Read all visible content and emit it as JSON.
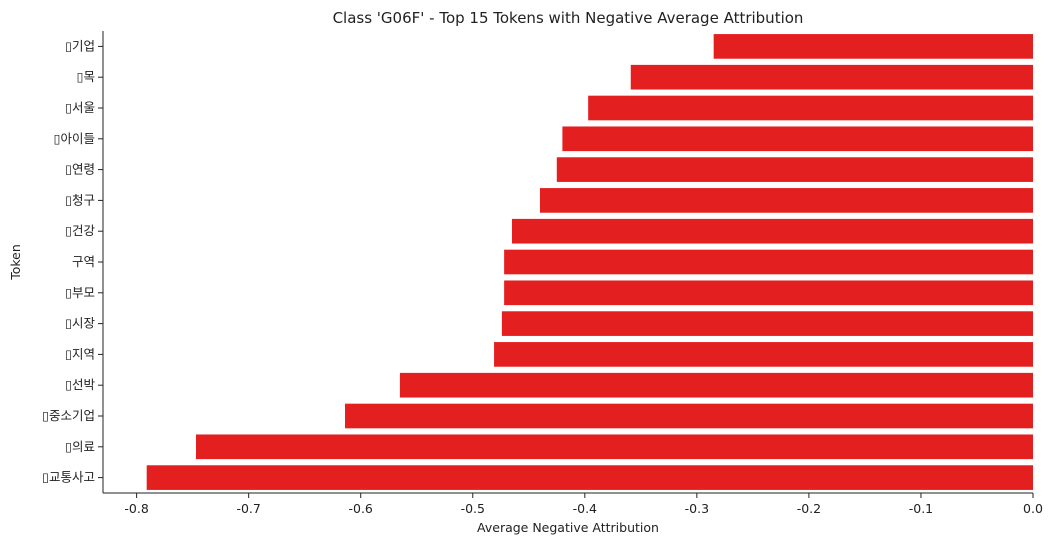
{
  "chart_data": {
    "type": "bar",
    "orientation": "horizontal",
    "title": "Class 'G06F' - Top 15 Tokens with Negative Average Attribution",
    "xlabel": "Average Negative Attribution",
    "ylabel": "Token",
    "xlim": [
      -0.83,
      0.0
    ],
    "xticks": [
      -0.8,
      -0.7,
      -0.6,
      -0.5,
      -0.4,
      -0.3,
      -0.2,
      -0.1,
      0.0
    ],
    "xtick_labels": [
      "-0.8",
      "-0.7",
      "-0.6",
      "-0.5",
      "-0.4",
      "-0.3",
      "-0.2",
      "-0.1",
      "0.0"
    ],
    "bar_color": "#e31f1f",
    "categories": [
      "▯기업",
      "▯목",
      "▯서울",
      "▯아이들",
      "▯연령",
      "▯청구",
      "▯건강",
      "구역",
      "▯부모",
      "▯시장",
      "▯지역",
      "▯선박",
      "▯중소기업",
      "▯의료",
      "▯교통사고"
    ],
    "values": [
      -0.285,
      -0.359,
      -0.397,
      -0.42,
      -0.425,
      -0.44,
      -0.465,
      -0.472,
      -0.472,
      -0.474,
      -0.481,
      -0.565,
      -0.614,
      -0.747,
      -0.791
    ],
    "grid": false
  }
}
